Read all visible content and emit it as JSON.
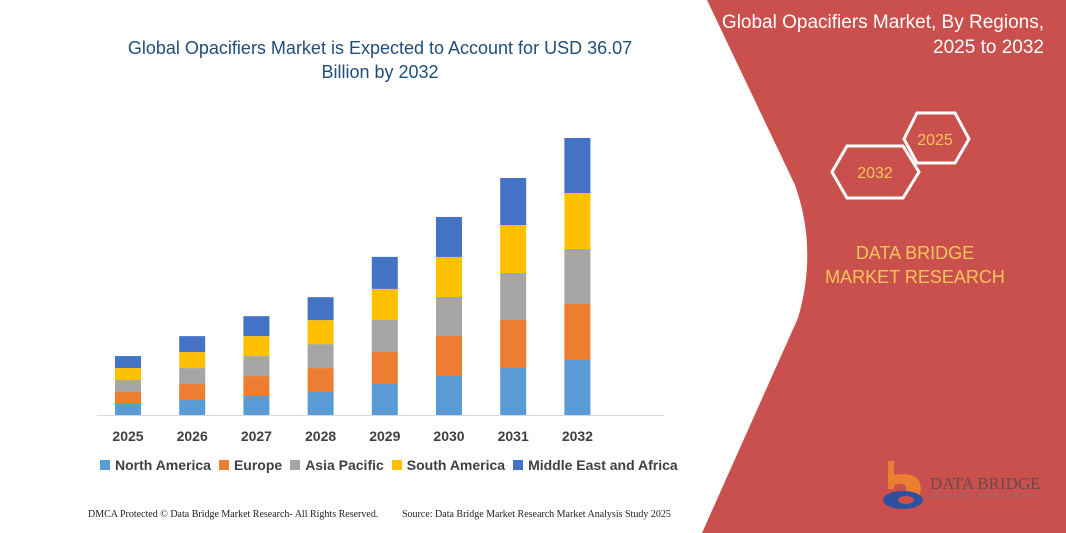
{
  "chart_data": {
    "type": "bar",
    "stacked": true,
    "title": "Global Opacifiers Market is Expected to Account for USD 36.07 Billion by 2032",
    "categories": [
      "2025",
      "2026",
      "2027",
      "2028",
      "2029",
      "2030",
      "2031",
      "2032"
    ],
    "series": [
      {
        "name": "North America",
        "color": "#5b9bd5",
        "values": [
          1.43,
          1.95,
          2.47,
          2.99,
          4.04,
          5.08,
          6.12,
          7.17
        ]
      },
      {
        "name": "Europe",
        "color": "#ed7d31",
        "values": [
          1.56,
          2.08,
          2.6,
          3.12,
          4.17,
          5.21,
          6.25,
          7.29
        ]
      },
      {
        "name": "Asia Pacific",
        "color": "#a5a5a5",
        "values": [
          1.56,
          2.08,
          2.6,
          3.12,
          4.17,
          5.08,
          6.12,
          7.16
        ]
      },
      {
        "name": "South America",
        "color": "#ffc000",
        "values": [
          1.56,
          2.08,
          2.6,
          3.12,
          4.04,
          5.21,
          6.25,
          7.29
        ]
      },
      {
        "name": "Middle East and Africa",
        "color": "#4472c4",
        "values": [
          1.56,
          2.08,
          2.6,
          2.99,
          4.17,
          5.21,
          6.12,
          7.16
        ]
      }
    ],
    "xlabel": "",
    "ylabel": "",
    "ylim": [
      0,
      36.07
    ],
    "grid": false,
    "legend": "bottom"
  },
  "side_panel": {
    "title": "Global Opacifiers Market, By Regions, 2025 to 2032",
    "hex_start": "2025",
    "hex_end": "2032",
    "brand": "DATA BRIDGE MARKET RESEARCH",
    "logo_text": "DATA BRIDGE",
    "logo_sub": "MARKET RESEARCH",
    "color": "#c9504c"
  },
  "footer": {
    "left": "DMCA Protected © Data Bridge Market Research- All Rights Reserved.",
    "right": "Source: Data Bridge Market Research Market Analysis Study 2025"
  }
}
